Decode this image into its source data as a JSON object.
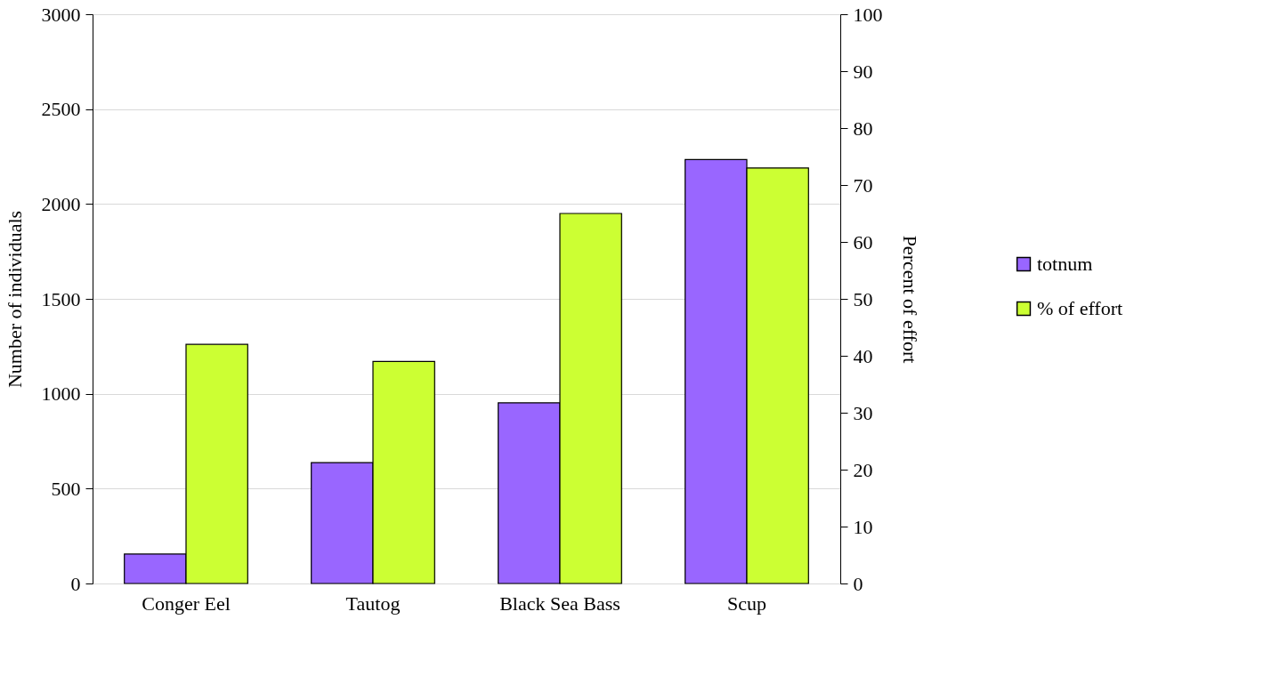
{
  "chart_data": {
    "type": "bar",
    "categories": [
      "Conger Eel",
      "Tautog",
      "Black Sea Bass",
      "Scup"
    ],
    "series": [
      {
        "name": "totnum",
        "color": "#9966ff",
        "values": [
          155,
          637,
          952,
          2234
        ]
      },
      {
        "name": "% of effort",
        "color": "#ccff33",
        "values": [
          42,
          39,
          65,
          73
        ],
        "axis": "y2"
      }
    ],
    "ylabel": "Number of individuals",
    "y2label": "Percent of effort",
    "ylim": [
      0,
      3000
    ],
    "yticks": [
      0,
      500,
      1000,
      1500,
      2000,
      2500,
      3000
    ],
    "y2lim": [
      0,
      100
    ],
    "y2ticks": [
      0,
      10,
      20,
      30,
      40,
      50,
      60,
      70,
      80,
      90,
      100
    ],
    "grid": "y",
    "legend": "right"
  }
}
